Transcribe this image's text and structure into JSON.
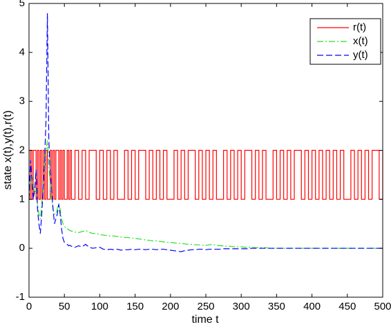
{
  "chart_data": {
    "type": "line",
    "xlabel": "time t",
    "ylabel": "state x(t),y(t),r(t)",
    "x": [
      0,
      2,
      4,
      6,
      8,
      10,
      12,
      14,
      16,
      18,
      20,
      22,
      24,
      26,
      28,
      30,
      32,
      34,
      36,
      38,
      40,
      42,
      44,
      46,
      48,
      50,
      52,
      54,
      56,
      58,
      60,
      65,
      70,
      75,
      80,
      85,
      90,
      95,
      100,
      105,
      110,
      115,
      120,
      125,
      130,
      135,
      140,
      145,
      150,
      155,
      160,
      165,
      170,
      175,
      180,
      185,
      190,
      195,
      200,
      205,
      210,
      215,
      220,
      225,
      230,
      235,
      240,
      245,
      250,
      255,
      260,
      265,
      270,
      275,
      280,
      285,
      290,
      295,
      300,
      305,
      310,
      315,
      320,
      325,
      330,
      335,
      340,
      345,
      350,
      355,
      360,
      365,
      370,
      375,
      380,
      385,
      390,
      395,
      400,
      405,
      410,
      415,
      420,
      425,
      430,
      435,
      440,
      445,
      450,
      455,
      460,
      465,
      470,
      475,
      480,
      485,
      490,
      495,
      500
    ],
    "series": [
      {
        "name": "r(t)",
        "color": "#ff0000",
        "step": true,
        "values": [
          1,
          2,
          1,
          2,
          2,
          1,
          2,
          1,
          2,
          1,
          2,
          1,
          2,
          1,
          1,
          2,
          1,
          2,
          1,
          2,
          2,
          1,
          2,
          1,
          2,
          1,
          1,
          2,
          1,
          2,
          1,
          2,
          1,
          2,
          1,
          2,
          2,
          1,
          2,
          1,
          2,
          1,
          2,
          1,
          1,
          2,
          1,
          2,
          1,
          2,
          2,
          1,
          2,
          1,
          2,
          1,
          2,
          1,
          1,
          2,
          1,
          2,
          1,
          2,
          2,
          1,
          2,
          1,
          2,
          1,
          2,
          1,
          1,
          2,
          1,
          2,
          1,
          2,
          1,
          2,
          2,
          1,
          2,
          1,
          2,
          1,
          1,
          2,
          1,
          2,
          1,
          2,
          1,
          2,
          2,
          1,
          2,
          1,
          2,
          1,
          2,
          1,
          2,
          1,
          2,
          1,
          2,
          1,
          1,
          2,
          1,
          2,
          1,
          2,
          1,
          2,
          2,
          1,
          2
        ]
      },
      {
        "name": "x(t)",
        "color": "#22e022",
        "dash": "9,3,2,3",
        "values": [
          1,
          1.4,
          1.5,
          1.3,
          1.1,
          1.2,
          0.9,
          0.7,
          0.6,
          0.9,
          1.3,
          1.6,
          2.0,
          2.2,
          1.7,
          1.3,
          1.0,
          0.8,
          0.7,
          0.7,
          0.8,
          0.9,
          0.8,
          0.6,
          0.5,
          0.45,
          0.42,
          0.4,
          0.38,
          0.36,
          0.35,
          0.33,
          0.32,
          0.34,
          0.36,
          0.33,
          0.3,
          0.3,
          0.28,
          0.27,
          0.26,
          0.25,
          0.25,
          0.24,
          0.23,
          0.22,
          0.22,
          0.21,
          0.2,
          0.19,
          0.18,
          0.17,
          0.16,
          0.15,
          0.15,
          0.14,
          0.13,
          0.12,
          0.12,
          0.11,
          0.1,
          0.1,
          0.09,
          0.08,
          0.08,
          0.07,
          0.07,
          0.06,
          0.06,
          0.07,
          0.08,
          0.06,
          0.05,
          0.05,
          0.04,
          0.04,
          0.03,
          0.03,
          0.03,
          0.02,
          0.02,
          0.02,
          0.01,
          0.01,
          0.01,
          0.01,
          0,
          0,
          0,
          0,
          0,
          0,
          0,
          0,
          0,
          0,
          0,
          0,
          0,
          0,
          0,
          0,
          0,
          0,
          0,
          0,
          0,
          0,
          0,
          0,
          0,
          0,
          0,
          0,
          0,
          0,
          0,
          0,
          0
        ]
      },
      {
        "name": "y(t)",
        "color": "#0000ff",
        "dash": "9,4",
        "values": [
          1,
          1.8,
          1.4,
          1.0,
          1.2,
          1.6,
          0.8,
          0.5,
          0.3,
          0.7,
          1.2,
          1.8,
          2.6,
          4.8,
          2.2,
          1.6,
          1.2,
          0.8,
          0.5,
          0.6,
          0.7,
          0.9,
          0.7,
          0.4,
          0.2,
          0.12,
          0.1,
          0.08,
          0.05,
          0.06,
          0.04,
          0.02,
          0.05,
          0.03,
          0.08,
          0.02,
          0.0,
          0.01,
          0.02,
          -0.02,
          -0.03,
          -0.02,
          -0.03,
          -0.02,
          -0.04,
          -0.03,
          -0.03,
          -0.02,
          -0.03,
          -0.02,
          -0.02,
          -0.03,
          -0.02,
          -0.02,
          -0.03,
          -0.02,
          -0.02,
          -0.03,
          -0.04,
          -0.05,
          -0.06,
          -0.07,
          -0.05,
          -0.04,
          -0.03,
          -0.03,
          -0.02,
          -0.02,
          -0.03,
          -0.02,
          -0.02,
          -0.02,
          -0.02,
          -0.01,
          -0.01,
          -0.01,
          -0.01,
          -0.01,
          -0.01,
          -0.01,
          -0.01,
          0,
          0,
          0,
          0,
          0,
          0,
          0,
          0,
          0,
          0,
          0,
          0,
          0,
          0,
          0,
          0,
          0,
          0,
          0,
          0,
          0,
          0,
          0,
          0,
          0,
          0,
          0,
          0,
          0,
          0,
          0,
          0,
          0,
          0,
          0,
          0,
          0,
          0
        ]
      }
    ],
    "xlim": [
      0,
      500
    ],
    "xticks": [
      0,
      50,
      100,
      150,
      200,
      250,
      300,
      350,
      400,
      450,
      500
    ],
    "ylim": [
      -1,
      5
    ],
    "yticks": [
      -1,
      0,
      1,
      2,
      3,
      4,
      5
    ],
    "grid": false,
    "legend": "upper right"
  }
}
